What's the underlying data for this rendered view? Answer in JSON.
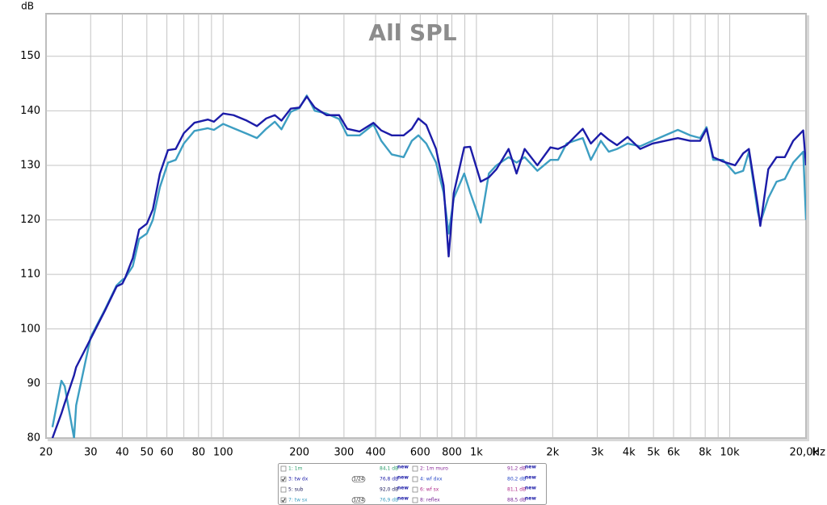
{
  "chart_data": {
    "type": "line",
    "title": "All SPL",
    "y_label": "dB",
    "x_label": "Hz",
    "log_x": true,
    "grid": true,
    "xlim": [
      20,
      20000
    ],
    "ylim": [
      80,
      157.8
    ],
    "yticks": [
      80,
      90,
      100,
      110,
      120,
      130,
      140,
      150
    ],
    "xticks": [
      20,
      30,
      40,
      50,
      60,
      80,
      100,
      200,
      300,
      400,
      600,
      800,
      {
        "value": 1000,
        "label": "1k"
      },
      {
        "value": 2000,
        "label": "2k"
      },
      {
        "value": 3000,
        "label": "3k"
      },
      {
        "value": 4000,
        "label": "4k"
      },
      {
        "value": 5000,
        "label": "5k"
      },
      {
        "value": 6000,
        "label": "6k"
      },
      {
        "value": 8000,
        "label": "8k"
      },
      {
        "value": 10000,
        "label": "10k"
      },
      {
        "value": 20000,
        "label": "20,0k"
      }
    ],
    "x_minor_ticks": [
      70,
      90,
      500,
      700,
      900,
      7000,
      9000
    ],
    "x": [
      21.2,
      23,
      23.7,
      25.8,
      26.3,
      30,
      34.2,
      38,
      40,
      41,
      44,
      46.6,
      50,
      52.8,
      56.3,
      60.6,
      65,
      70,
      77,
      87,
      92,
      100,
      110,
      124,
      136,
      148,
      160,
      170,
      185,
      200,
      214,
      230,
      256,
      287,
      309,
      346,
      392,
      421,
      463,
      516,
      556,
      590,
      634,
      693,
      742,
      777,
      814,
      895,
      945,
      1040,
      1120,
      1200,
      1340,
      1440,
      1550,
      1740,
      1960,
      2100,
      2270,
      2440,
      2630,
      2830,
      3100,
      3330,
      3590,
      3950,
      4430,
      4960,
      5560,
      6240,
      6980,
      7640,
      8100,
      8600,
      9400,
      10500,
      11300,
      11900,
      12900,
      13200,
      14200,
      15300,
      16500,
      17800,
      19500,
      20000
    ],
    "series": [
      {
        "color": "#3d9ec2",
        "values": [
          82,
          90.5,
          89.5,
          80,
          86,
          98.5,
          103.6,
          108,
          109,
          109.3,
          111.5,
          116.5,
          117.5,
          120,
          126,
          130.5,
          131,
          134,
          136.3,
          136.8,
          136.5,
          137.6,
          136.8,
          135.8,
          135,
          136.7,
          138,
          136.6,
          139.8,
          140.5,
          142.8,
          140,
          139.5,
          138.5,
          135.5,
          135.5,
          137.5,
          134.5,
          132,
          131.5,
          134.5,
          135.5,
          134,
          130.5,
          125,
          117.5,
          124,
          128.5,
          125,
          119.5,
          128.5,
          130,
          131.5,
          130.5,
          131.5,
          129,
          131,
          131,
          134,
          134.5,
          135,
          131,
          134.5,
          132.5,
          133,
          134,
          133.5,
          134.5,
          135.5,
          136.5,
          135.5,
          135,
          137,
          131,
          131,
          128.5,
          129,
          132.5,
          121.5,
          119.5,
          124,
          127,
          127.5,
          130.5,
          132.5,
          120
        ]
      },
      {
        "color": "#1c1ca8",
        "values": [
          80,
          84.5,
          86.4,
          91.5,
          93,
          98.2,
          103.4,
          107.8,
          108.3,
          109.3,
          113,
          118.2,
          119.3,
          121.9,
          128.5,
          132.8,
          133,
          135.9,
          137.8,
          138.4,
          138,
          139.5,
          139.2,
          138.2,
          137.2,
          138.6,
          139.2,
          138.2,
          140.4,
          140.6,
          142.6,
          140.6,
          139.2,
          139.2,
          136.7,
          136.2,
          137.8,
          136.4,
          135.5,
          135.5,
          136.7,
          138.6,
          137.4,
          133,
          126.3,
          113.3,
          124.9,
          133.3,
          133.4,
          127,
          127.8,
          129.3,
          133,
          128.5,
          133,
          130,
          133.3,
          133,
          133.7,
          135.2,
          136.7,
          134,
          135.9,
          134.7,
          133.7,
          135.2,
          133,
          134,
          134.5,
          135,
          134.5,
          134.5,
          136.7,
          131.5,
          130.7,
          130,
          132.2,
          133,
          122.6,
          118.9,
          129.3,
          131.5,
          131.5,
          134.5,
          136.4,
          130
        ]
      }
    ],
    "legend": [
      {
        "label": "1: 1m",
        "level": "84,1 dB",
        "badge": "new",
        "checked": false,
        "color": "#2a9d6a"
      },
      {
        "label": "2: 1m muro",
        "level": "91,2 dB",
        "badge": "new",
        "checked": false,
        "color": "#8a2a9a"
      },
      {
        "label": "3: tw dx",
        "level": "76,8 dB",
        "badge": "new",
        "checked": true,
        "smoothing": "1/24",
        "color": "#1c1ca8"
      },
      {
        "label": "4: wf dxx",
        "level": "80,2 dB",
        "badge": "new",
        "checked": false,
        "color": "#2a4ac8"
      },
      {
        "label": "5: sub",
        "level": "92,0 dB",
        "badge": "new",
        "checked": false,
        "color": "#202060"
      },
      {
        "label": "6: wf sx",
        "level": "81,1 dB",
        "badge": "new",
        "checked": false,
        "color": "#b02a8a"
      },
      {
        "label": "7: tw sx",
        "level": "76,9 dB",
        "badge": "new",
        "checked": true,
        "smoothing": "1/24",
        "color": "#3d9ec2"
      },
      {
        "label": "8: reflex",
        "level": "88,5 dB",
        "badge": "new",
        "checked": false,
        "color": "#7a2a9a"
      }
    ]
  }
}
